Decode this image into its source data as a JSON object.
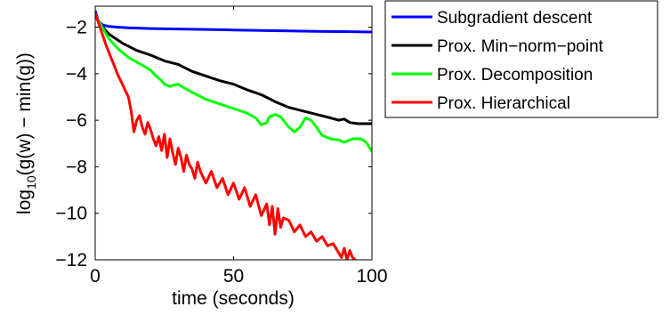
{
  "chart_data": {
    "type": "line",
    "xlabel": "time (seconds)",
    "ylabel": {
      "prefix": "log",
      "sub": "10",
      "suffix": "(g(w) − min(g))"
    },
    "xlim": [
      0,
      100
    ],
    "ylim": [
      -12,
      -1.1
    ],
    "x_ticks": [
      0,
      50,
      100
    ],
    "x_tick_labels": [
      "0",
      "50",
      "100"
    ],
    "y_ticks": [
      -12,
      -10,
      -8,
      -6,
      -4,
      -2
    ],
    "y_tick_labels": [
      "−12",
      "−10",
      "−8",
      "−6",
      "−4",
      "−2"
    ],
    "grid": false,
    "legend_position": "outside-top-right",
    "series": [
      {
        "name": "Subgradient descent",
        "color": "#0000ff",
        "points": [
          [
            0,
            -1.3
          ],
          [
            1,
            -1.7
          ],
          [
            2,
            -1.85
          ],
          [
            3,
            -1.92
          ],
          [
            5,
            -1.97
          ],
          [
            8,
            -2.0
          ],
          [
            12,
            -2.03
          ],
          [
            20,
            -2.06
          ],
          [
            30,
            -2.08
          ],
          [
            40,
            -2.1
          ],
          [
            50,
            -2.12
          ],
          [
            60,
            -2.14
          ],
          [
            70,
            -2.16
          ],
          [
            80,
            -2.18
          ],
          [
            90,
            -2.19
          ],
          [
            100,
            -2.21
          ]
        ]
      },
      {
        "name": "Prox. Min−norm−point",
        "color": "#000000",
        "points": [
          [
            0,
            -1.5
          ],
          [
            2,
            -1.9
          ],
          [
            5,
            -2.3
          ],
          [
            10,
            -2.7
          ],
          [
            15,
            -3.0
          ],
          [
            20,
            -3.2
          ],
          [
            25,
            -3.45
          ],
          [
            30,
            -3.6
          ],
          [
            35,
            -3.9
          ],
          [
            40,
            -4.1
          ],
          [
            45,
            -4.3
          ],
          [
            50,
            -4.45
          ],
          [
            55,
            -4.7
          ],
          [
            60,
            -4.9
          ],
          [
            65,
            -5.2
          ],
          [
            70,
            -5.45
          ],
          [
            75,
            -5.6
          ],
          [
            80,
            -5.75
          ],
          [
            85,
            -5.9
          ],
          [
            88,
            -6.0
          ],
          [
            90,
            -5.95
          ],
          [
            92,
            -6.1
          ],
          [
            95,
            -6.15
          ],
          [
            100,
            -6.15
          ]
        ]
      },
      {
        "name": "Prox. Decomposition",
        "color": "#00ff00",
        "points": [
          [
            0,
            -1.5
          ],
          [
            2,
            -1.9
          ],
          [
            5,
            -2.5
          ],
          [
            8,
            -2.9
          ],
          [
            10,
            -3.1
          ],
          [
            12,
            -3.3
          ],
          [
            15,
            -3.5
          ],
          [
            18,
            -3.7
          ],
          [
            20,
            -3.85
          ],
          [
            22,
            -4.1
          ],
          [
            24,
            -4.3
          ],
          [
            25,
            -4.45
          ],
          [
            27,
            -4.55
          ],
          [
            28,
            -4.5
          ],
          [
            30,
            -4.45
          ],
          [
            32,
            -4.6
          ],
          [
            35,
            -4.8
          ],
          [
            40,
            -5.1
          ],
          [
            45,
            -5.3
          ],
          [
            50,
            -5.5
          ],
          [
            55,
            -5.7
          ],
          [
            58,
            -5.9
          ],
          [
            60,
            -6.2
          ],
          [
            62,
            -6.1
          ],
          [
            63,
            -5.85
          ],
          [
            65,
            -5.75
          ],
          [
            67,
            -5.85
          ],
          [
            70,
            -6.3
          ],
          [
            72,
            -6.5
          ],
          [
            74,
            -6.3
          ],
          [
            76,
            -5.9
          ],
          [
            78,
            -6.0
          ],
          [
            80,
            -6.3
          ],
          [
            82,
            -6.65
          ],
          [
            85,
            -6.8
          ],
          [
            88,
            -6.85
          ],
          [
            90,
            -6.95
          ],
          [
            93,
            -6.8
          ],
          [
            96,
            -6.8
          ],
          [
            98,
            -6.95
          ],
          [
            100,
            -7.35
          ]
        ]
      },
      {
        "name": "Prox. Hierarchical",
        "color": "#ff0000",
        "points": [
          [
            0,
            -1.4
          ],
          [
            2,
            -2.1
          ],
          [
            4,
            -2.8
          ],
          [
            6,
            -3.4
          ],
          [
            8,
            -4.0
          ],
          [
            10,
            -4.5
          ],
          [
            12,
            -5.0
          ],
          [
            13,
            -5.6
          ],
          [
            14,
            -6.5
          ],
          [
            15,
            -6.0
          ],
          [
            16,
            -5.8
          ],
          [
            17,
            -6.3
          ],
          [
            18,
            -6.6
          ],
          [
            19,
            -6.1
          ],
          [
            20,
            -6.4
          ],
          [
            21,
            -6.8
          ],
          [
            22,
            -7.1
          ],
          [
            23,
            -6.7
          ],
          [
            24,
            -7.3
          ],
          [
            25,
            -6.6
          ],
          [
            26,
            -7.6
          ],
          [
            27,
            -6.8
          ],
          [
            28,
            -7.4
          ],
          [
            29,
            -7.9
          ],
          [
            30,
            -7.2
          ],
          [
            31,
            -7.6
          ],
          [
            32,
            -8.2
          ],
          [
            33,
            -7.5
          ],
          [
            34,
            -7.9
          ],
          [
            35,
            -8.1
          ],
          [
            36,
            -8.5
          ],
          [
            37,
            -7.8
          ],
          [
            38,
            -8.2
          ],
          [
            40,
            -8.7
          ],
          [
            42,
            -8.2
          ],
          [
            44,
            -8.9
          ],
          [
            46,
            -8.5
          ],
          [
            48,
            -9.2
          ],
          [
            50,
            -8.7
          ],
          [
            52,
            -9.4
          ],
          [
            54,
            -8.9
          ],
          [
            56,
            -9.7
          ],
          [
            58,
            -9.2
          ],
          [
            60,
            -10.1
          ],
          [
            62,
            -9.6
          ],
          [
            63,
            -10.5
          ],
          [
            64,
            -9.7
          ],
          [
            65,
            -10.9
          ],
          [
            66,
            -9.8
          ],
          [
            67,
            -10.6
          ],
          [
            68,
            -10.2
          ],
          [
            70,
            -10.3
          ],
          [
            72,
            -10.8
          ],
          [
            74,
            -10.5
          ],
          [
            76,
            -11.0
          ],
          [
            78,
            -10.8
          ],
          [
            80,
            -11.2
          ],
          [
            82,
            -11.0
          ],
          [
            84,
            -11.4
          ],
          [
            86,
            -11.3
          ],
          [
            88,
            -11.7
          ],
          [
            89,
            -11.9
          ],
          [
            90,
            -11.5
          ],
          [
            91,
            -12.0
          ],
          [
            92,
            -11.6
          ],
          [
            93,
            -11.9
          ],
          [
            94,
            -12.0
          ]
        ]
      }
    ]
  }
}
